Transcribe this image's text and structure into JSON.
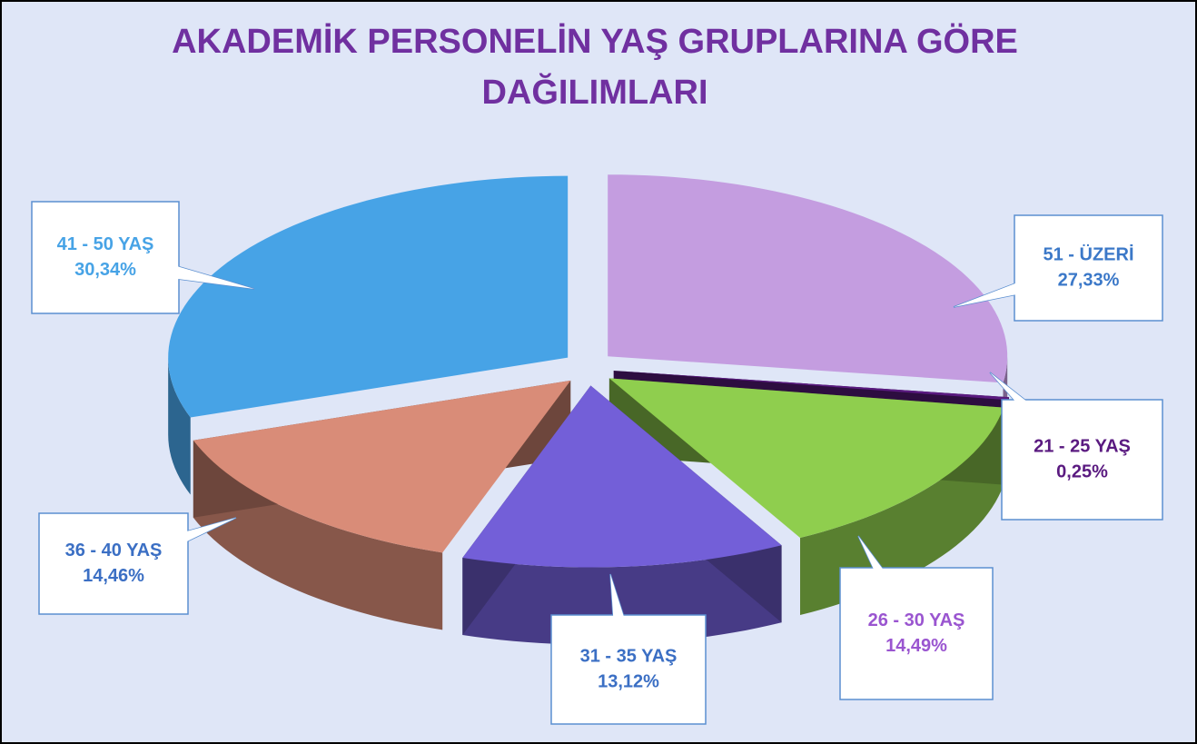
{
  "chart_data": {
    "type": "pie",
    "title": "AKADEMİK PERSONELİN YAŞ GRUPLARINA GÖRE DAĞILIMLARI",
    "categories": [
      "51 - ÜZERİ",
      "21 - 25 YAŞ",
      "26 - 30 YAŞ",
      "31 - 35 YAŞ",
      "36 - 40 YAŞ",
      "41 - 50 YAŞ"
    ],
    "values": [
      27.33,
      0.25,
      14.49,
      13.12,
      14.46,
      30.34
    ],
    "value_labels": [
      "27,33%",
      "0,25%",
      "14,49%",
      "13,12%",
      "14,46%",
      "30,34%"
    ],
    "colors": [
      "#c49de0",
      "#5a1a80",
      "#8fce4e",
      "#735fd8",
      "#d98c78",
      "#47a3e6"
    ],
    "label_colors": [
      "#3b78c8",
      "#5a1a80",
      "#9a55d0",
      "#3b6fc4",
      "#3b6fc4",
      "#47a3e6"
    ]
  }
}
